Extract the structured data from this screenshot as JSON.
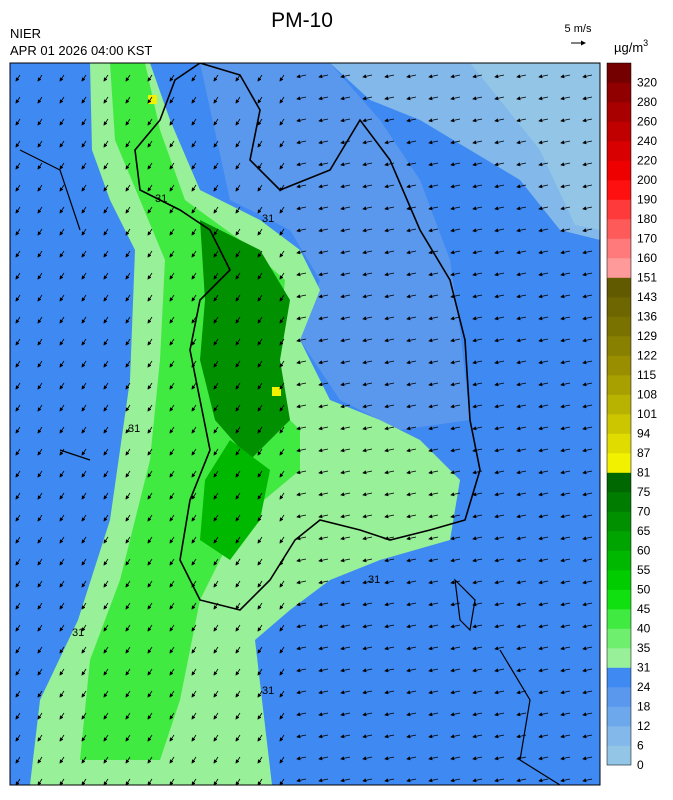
{
  "header": {
    "title": "PM-10",
    "agency": "NIER",
    "timestamp": "APR 01 2026 04:00 KST",
    "wind_scale": "5 m/s"
  },
  "colorbar": {
    "unit": "µg/m",
    "unit_power": "3",
    "labels": [
      0,
      6,
      12,
      18,
      24,
      31,
      35,
      40,
      45,
      50,
      55,
      60,
      65,
      70,
      75,
      81,
      87,
      94,
      101,
      108,
      115,
      122,
      129,
      136,
      143,
      151,
      160,
      170,
      180,
      190,
      200,
      220,
      240,
      260,
      280,
      320
    ],
    "colors": [
      "#93c6e6",
      "#82b8ea",
      "#6ea8ec",
      "#5a98ee",
      "#3f89f2",
      "#98f098",
      "#6ef06e",
      "#40ea40",
      "#10e010",
      "#00cc00",
      "#00b800",
      "#00a400",
      "#009000",
      "#007c00",
      "#006800",
      "#f2f200",
      "#e0dc00",
      "#ccc600",
      "#b8b200",
      "#a8a000",
      "#988e00",
      "#888000",
      "#7a7200",
      "#6e6600",
      "#625a00",
      "#ff9a9a",
      "#ff7a7a",
      "#ff5a5a",
      "#ff3a3a",
      "#ff1010",
      "#ee0000",
      "#d80000",
      "#c00000",
      "#a80000",
      "#900000",
      "#740000"
    ]
  },
  "map": {
    "contour_labels": [
      "31",
      "31",
      "31",
      "31",
      "31",
      "31"
    ]
  }
}
